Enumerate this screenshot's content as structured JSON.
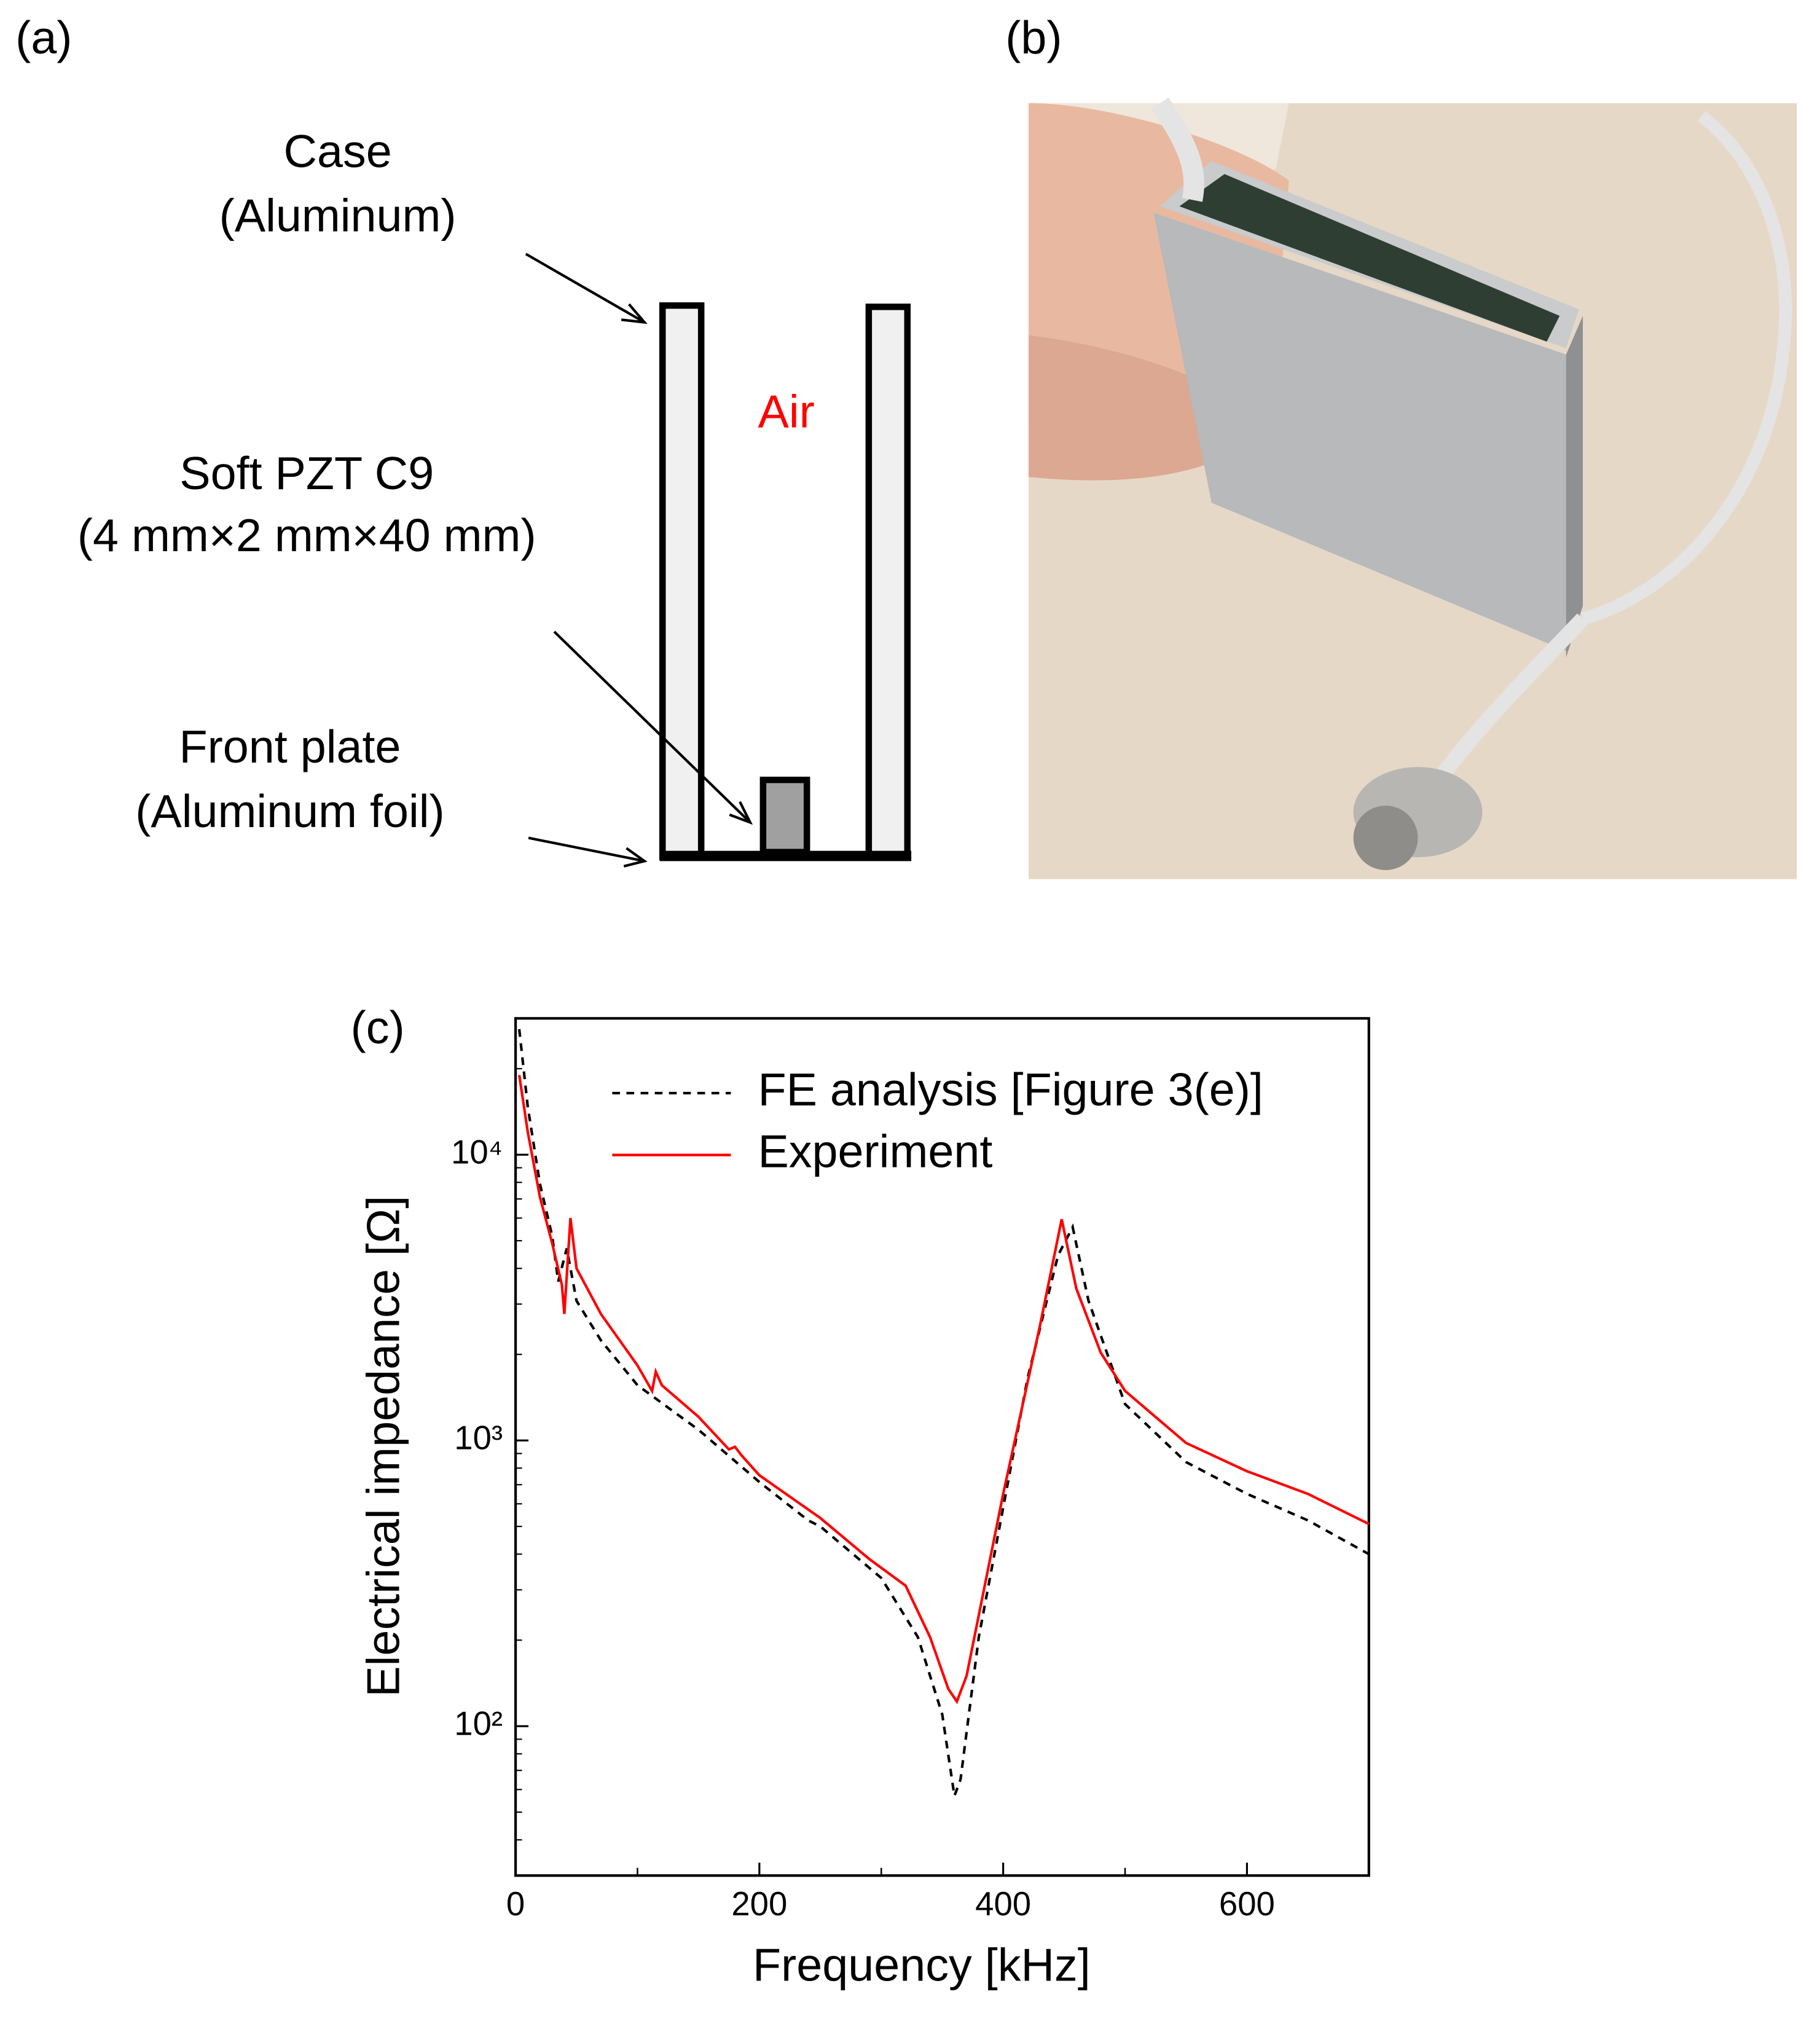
{
  "panel_a": {
    "label": "(a)",
    "case": "Case",
    "case_material": "(Aluminum)",
    "air": "Air",
    "pzt": "Soft PZT C9",
    "pzt_size": "(4 mm×2 mm×40 mm)",
    "front_plate": "Front plate",
    "front_material": "(Aluminum foil)"
  },
  "panel_b": {
    "label": "(b)"
  },
  "chart_data": {
    "type": "line",
    "label": "(c)",
    "x_label": "Frequency [kHz]",
    "y_label": "Electrical impedance [Ω]",
    "xlim": [
      0,
      700
    ],
    "xticks": [
      0,
      200,
      400,
      600
    ],
    "xminorticks": [
      100,
      300,
      500
    ],
    "ylim": [
      30,
      30000
    ],
    "log_y": true,
    "yticks": [
      {
        "value": 100,
        "label": "10²"
      },
      {
        "value": 1000,
        "label": "10³"
      },
      {
        "value": 10000,
        "label": "10⁴"
      }
    ],
    "yminorticks": [
      40,
      50,
      60,
      70,
      80,
      90,
      200,
      300,
      400,
      500,
      600,
      700,
      800,
      900,
      2000,
      3000,
      4000,
      5000,
      6000,
      7000,
      8000,
      9000,
      20000,
      30000
    ],
    "legend": "upper right",
    "series": [
      {
        "name": "FE analysis [Figure 3(e)]",
        "color": "#000000",
        "linestyle": "dashed",
        "x": [
          3,
          10,
          20,
          30,
          35,
          42,
          50,
          70,
          100,
          150,
          200,
          240,
          250,
          300,
          330,
          350,
          360,
          365,
          380,
          420,
          445,
          457,
          470,
          500,
          550,
          600,
          650,
          700
        ],
        "values": [
          27500,
          14700,
          7900,
          5200,
          3600,
          4700,
          3080,
          2240,
          1560,
          1090,
          715,
          525,
          500,
          330,
          205,
          110,
          57,
          65,
          205,
          1650,
          4440,
          5580,
          3080,
          1340,
          840,
          650,
          525,
          400
        ]
      },
      {
        "name": "Experiment",
        "color": "#ff0000",
        "linestyle": "solid",
        "x": [
          3,
          10,
          20,
          30,
          38,
          40,
          45,
          50,
          70,
          100,
          112,
          115,
          120,
          150,
          175,
          180,
          185,
          200,
          250,
          290,
          320,
          340,
          355,
          362,
          370,
          400,
          430,
          448,
          460,
          480,
          500,
          550,
          600,
          650,
          700
        ],
        "values": [
          19000,
          12000,
          7100,
          4900,
          3500,
          2770,
          6000,
          4000,
          2770,
          1830,
          1490,
          1740,
          1560,
          1210,
          930,
          950,
          890,
          755,
          535,
          385,
          310,
          205,
          135,
          122,
          150,
          650,
          2500,
          5940,
          3400,
          2030,
          1490,
          980,
          780,
          650,
          510
        ]
      }
    ]
  }
}
